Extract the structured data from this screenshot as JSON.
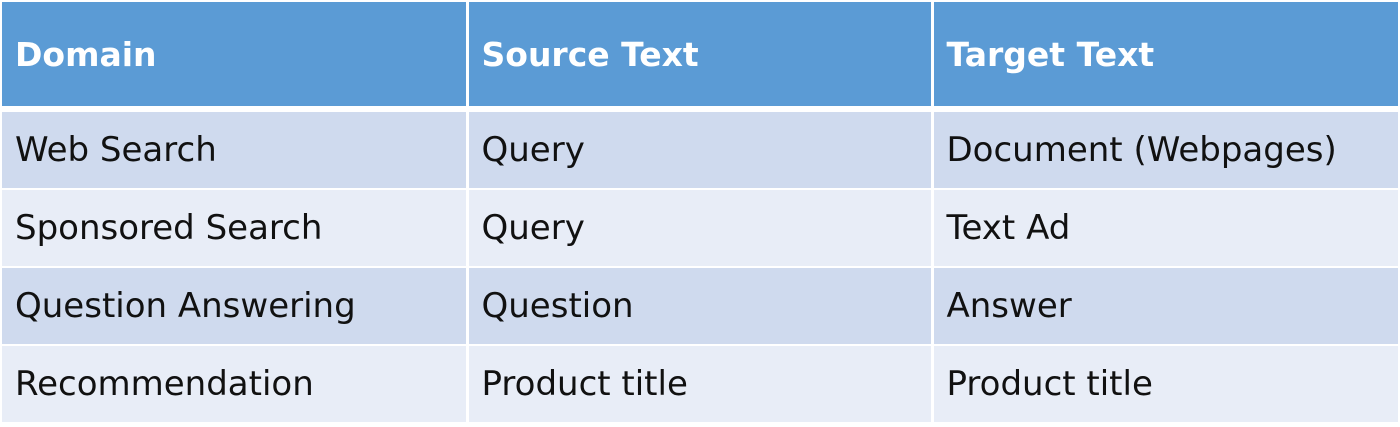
{
  "table": {
    "headers": [
      "Domain",
      "Source Text",
      "Target Text"
    ],
    "rows": [
      [
        "Web Search",
        "Query",
        "Document (Webpages)"
      ],
      [
        "Sponsored Search",
        "Query",
        "Text Ad"
      ],
      [
        "Question Answering",
        "Question",
        "Answer"
      ],
      [
        "Recommendation",
        "Product title",
        "Product title"
      ]
    ]
  },
  "colors": {
    "header_bg": "#5b9bd5",
    "row_dark_bg": "#cfdaee",
    "row_light_bg": "#e8edf7"
  }
}
